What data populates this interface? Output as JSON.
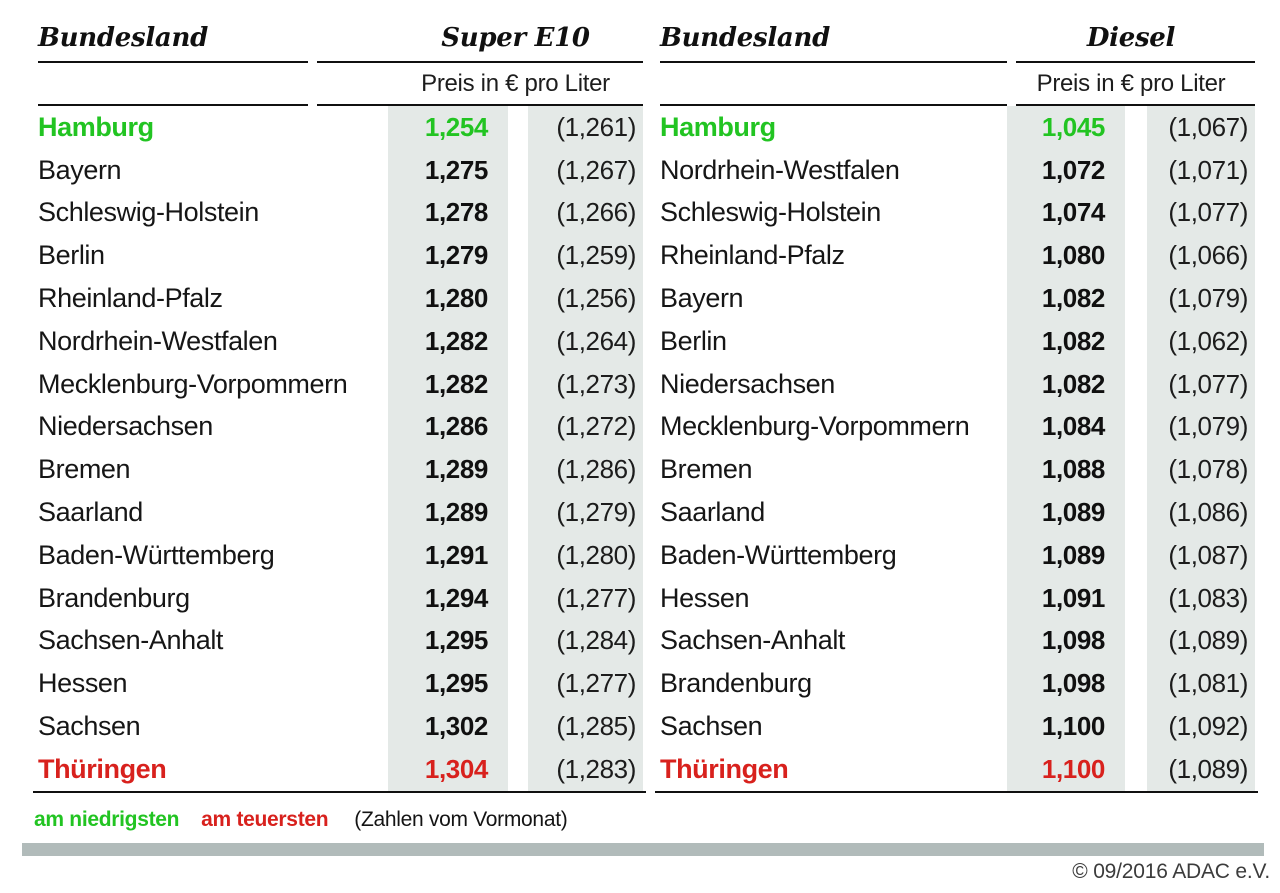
{
  "chart_data": [
    {
      "type": "table",
      "fuel": "Super E10",
      "col_header": "Bundesland",
      "unit_header": "Preis in € pro Liter",
      "rows": [
        {
          "name": "Hamburg",
          "price": "1,254",
          "prev": "(1,261)",
          "mark": "lowest"
        },
        {
          "name": "Bayern",
          "price": "1,275",
          "prev": "(1,267)",
          "mark": null
        },
        {
          "name": "Schleswig-Holstein",
          "price": "1,278",
          "prev": "(1,266)",
          "mark": null
        },
        {
          "name": "Berlin",
          "price": "1,279",
          "prev": "(1,259)",
          "mark": null
        },
        {
          "name": "Rheinland-Pfalz",
          "price": "1,280",
          "prev": "(1,256)",
          "mark": null
        },
        {
          "name": "Nordrhein-Westfalen",
          "price": "1,282",
          "prev": "(1,264)",
          "mark": null
        },
        {
          "name": "Mecklenburg-Vorpommern",
          "price": "1,282",
          "prev": "(1,273)",
          "mark": null
        },
        {
          "name": "Niedersachsen",
          "price": "1,286",
          "prev": "(1,272)",
          "mark": null
        },
        {
          "name": "Bremen",
          "price": "1,289",
          "prev": "(1,286)",
          "mark": null
        },
        {
          "name": "Saarland",
          "price": "1,289",
          "prev": "(1,279)",
          "mark": null
        },
        {
          "name": "Baden-Württemberg",
          "price": "1,291",
          "prev": "(1,280)",
          "mark": null
        },
        {
          "name": "Brandenburg",
          "price": "1,294",
          "prev": "(1,277)",
          "mark": null
        },
        {
          "name": "Sachsen-Anhalt",
          "price": "1,295",
          "prev": "(1,284)",
          "mark": null
        },
        {
          "name": "Hessen",
          "price": "1,295",
          "prev": "(1,277)",
          "mark": null
        },
        {
          "name": "Sachsen",
          "price": "1,302",
          "prev": "(1,285)",
          "mark": null
        },
        {
          "name": "Thüringen",
          "price": "1,304",
          "prev": "(1,283)",
          "mark": "highest"
        }
      ]
    },
    {
      "type": "table",
      "fuel": "Diesel",
      "col_header": "Bundesland",
      "unit_header": "Preis in € pro Liter",
      "rows": [
        {
          "name": "Hamburg",
          "price": "1,045",
          "prev": "(1,067)",
          "mark": "lowest"
        },
        {
          "name": "Nordrhein-Westfalen",
          "price": "1,072",
          "prev": "(1,071)",
          "mark": null
        },
        {
          "name": "Schleswig-Holstein",
          "price": "1,074",
          "prev": "(1,077)",
          "mark": null
        },
        {
          "name": "Rheinland-Pfalz",
          "price": "1,080",
          "prev": "(1,066)",
          "mark": null
        },
        {
          "name": "Bayern",
          "price": "1,082",
          "prev": "(1,079)",
          "mark": null
        },
        {
          "name": "Berlin",
          "price": "1,082",
          "prev": "(1,062)",
          "mark": null
        },
        {
          "name": "Niedersachsen",
          "price": "1,082",
          "prev": "(1,077)",
          "mark": null
        },
        {
          "name": "Mecklenburg-Vorpommern",
          "price": "1,084",
          "prev": "(1,079)",
          "mark": null
        },
        {
          "name": "Bremen",
          "price": "1,088",
          "prev": "(1,078)",
          "mark": null
        },
        {
          "name": "Saarland",
          "price": "1,089",
          "prev": "(1,086)",
          "mark": null
        },
        {
          "name": "Baden-Württemberg",
          "price": "1,089",
          "prev": "(1,087)",
          "mark": null
        },
        {
          "name": "Hessen",
          "price": "1,091",
          "prev": "(1,083)",
          "mark": null
        },
        {
          "name": "Sachsen-Anhalt",
          "price": "1,098",
          "prev": "(1,089)",
          "mark": null
        },
        {
          "name": "Brandenburg",
          "price": "1,098",
          "prev": "(1,081)",
          "mark": null
        },
        {
          "name": "Sachsen",
          "price": "1,100",
          "prev": "(1,092)",
          "mark": null
        },
        {
          "name": "Thüringen",
          "price": "1,100",
          "prev": "(1,089)",
          "mark": "highest"
        }
      ]
    }
  ],
  "legend": {
    "lowest_label": "am niedrigsten",
    "highest_label": "am teuersten",
    "note": "(Zahlen vom Vormonat)"
  },
  "footer": {
    "copyright": "© 09/2016 ADAC e.V."
  },
  "colors": {
    "lowest": "#22c422",
    "highest": "#d8211d",
    "stripe": "#e4e9e7",
    "bar": "#b1bbba"
  }
}
